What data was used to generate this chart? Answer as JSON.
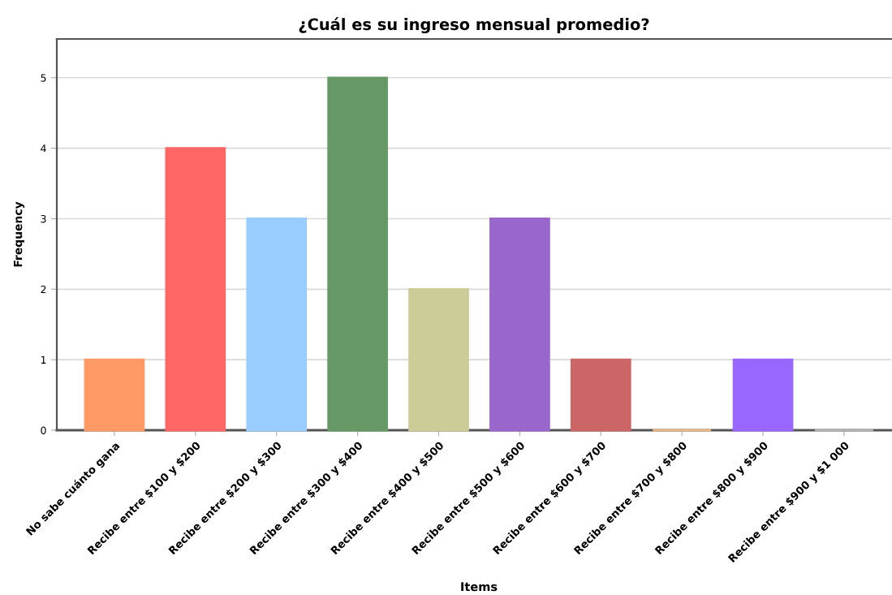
{
  "chart_data": {
    "type": "bar",
    "title": "¿Cuál es su ingreso mensual promedio?",
    "xlabel": "Items",
    "ylabel": "Frequency",
    "categories": [
      "No sabe cuánto gana",
      "Recibe entre $100 y $200",
      "Recibe entre $200 y $300",
      "Recibe entre $300 y $400",
      "Recibe entre $400 y $500",
      "Recibe entre $500 y $600",
      "Recibe entre $600 y $700",
      "Recibe entre $700 y $800",
      "Recibe entre $800 y $900",
      "Recibe entre $900 y $1 000"
    ],
    "values": [
      1,
      4,
      3,
      5,
      2,
      3,
      1,
      0,
      1,
      0
    ],
    "colors": [
      "#ff9966",
      "#ff6666",
      "#99ccff",
      "#669966",
      "#cccc99",
      "#9966cc",
      "#cc6666",
      "#e8b888",
      "#9966ff",
      "#b3b3b3"
    ],
    "ylim": [
      0,
      5.55
    ],
    "yticks": [
      0,
      1,
      2,
      3,
      4,
      5
    ],
    "grid": "y"
  }
}
